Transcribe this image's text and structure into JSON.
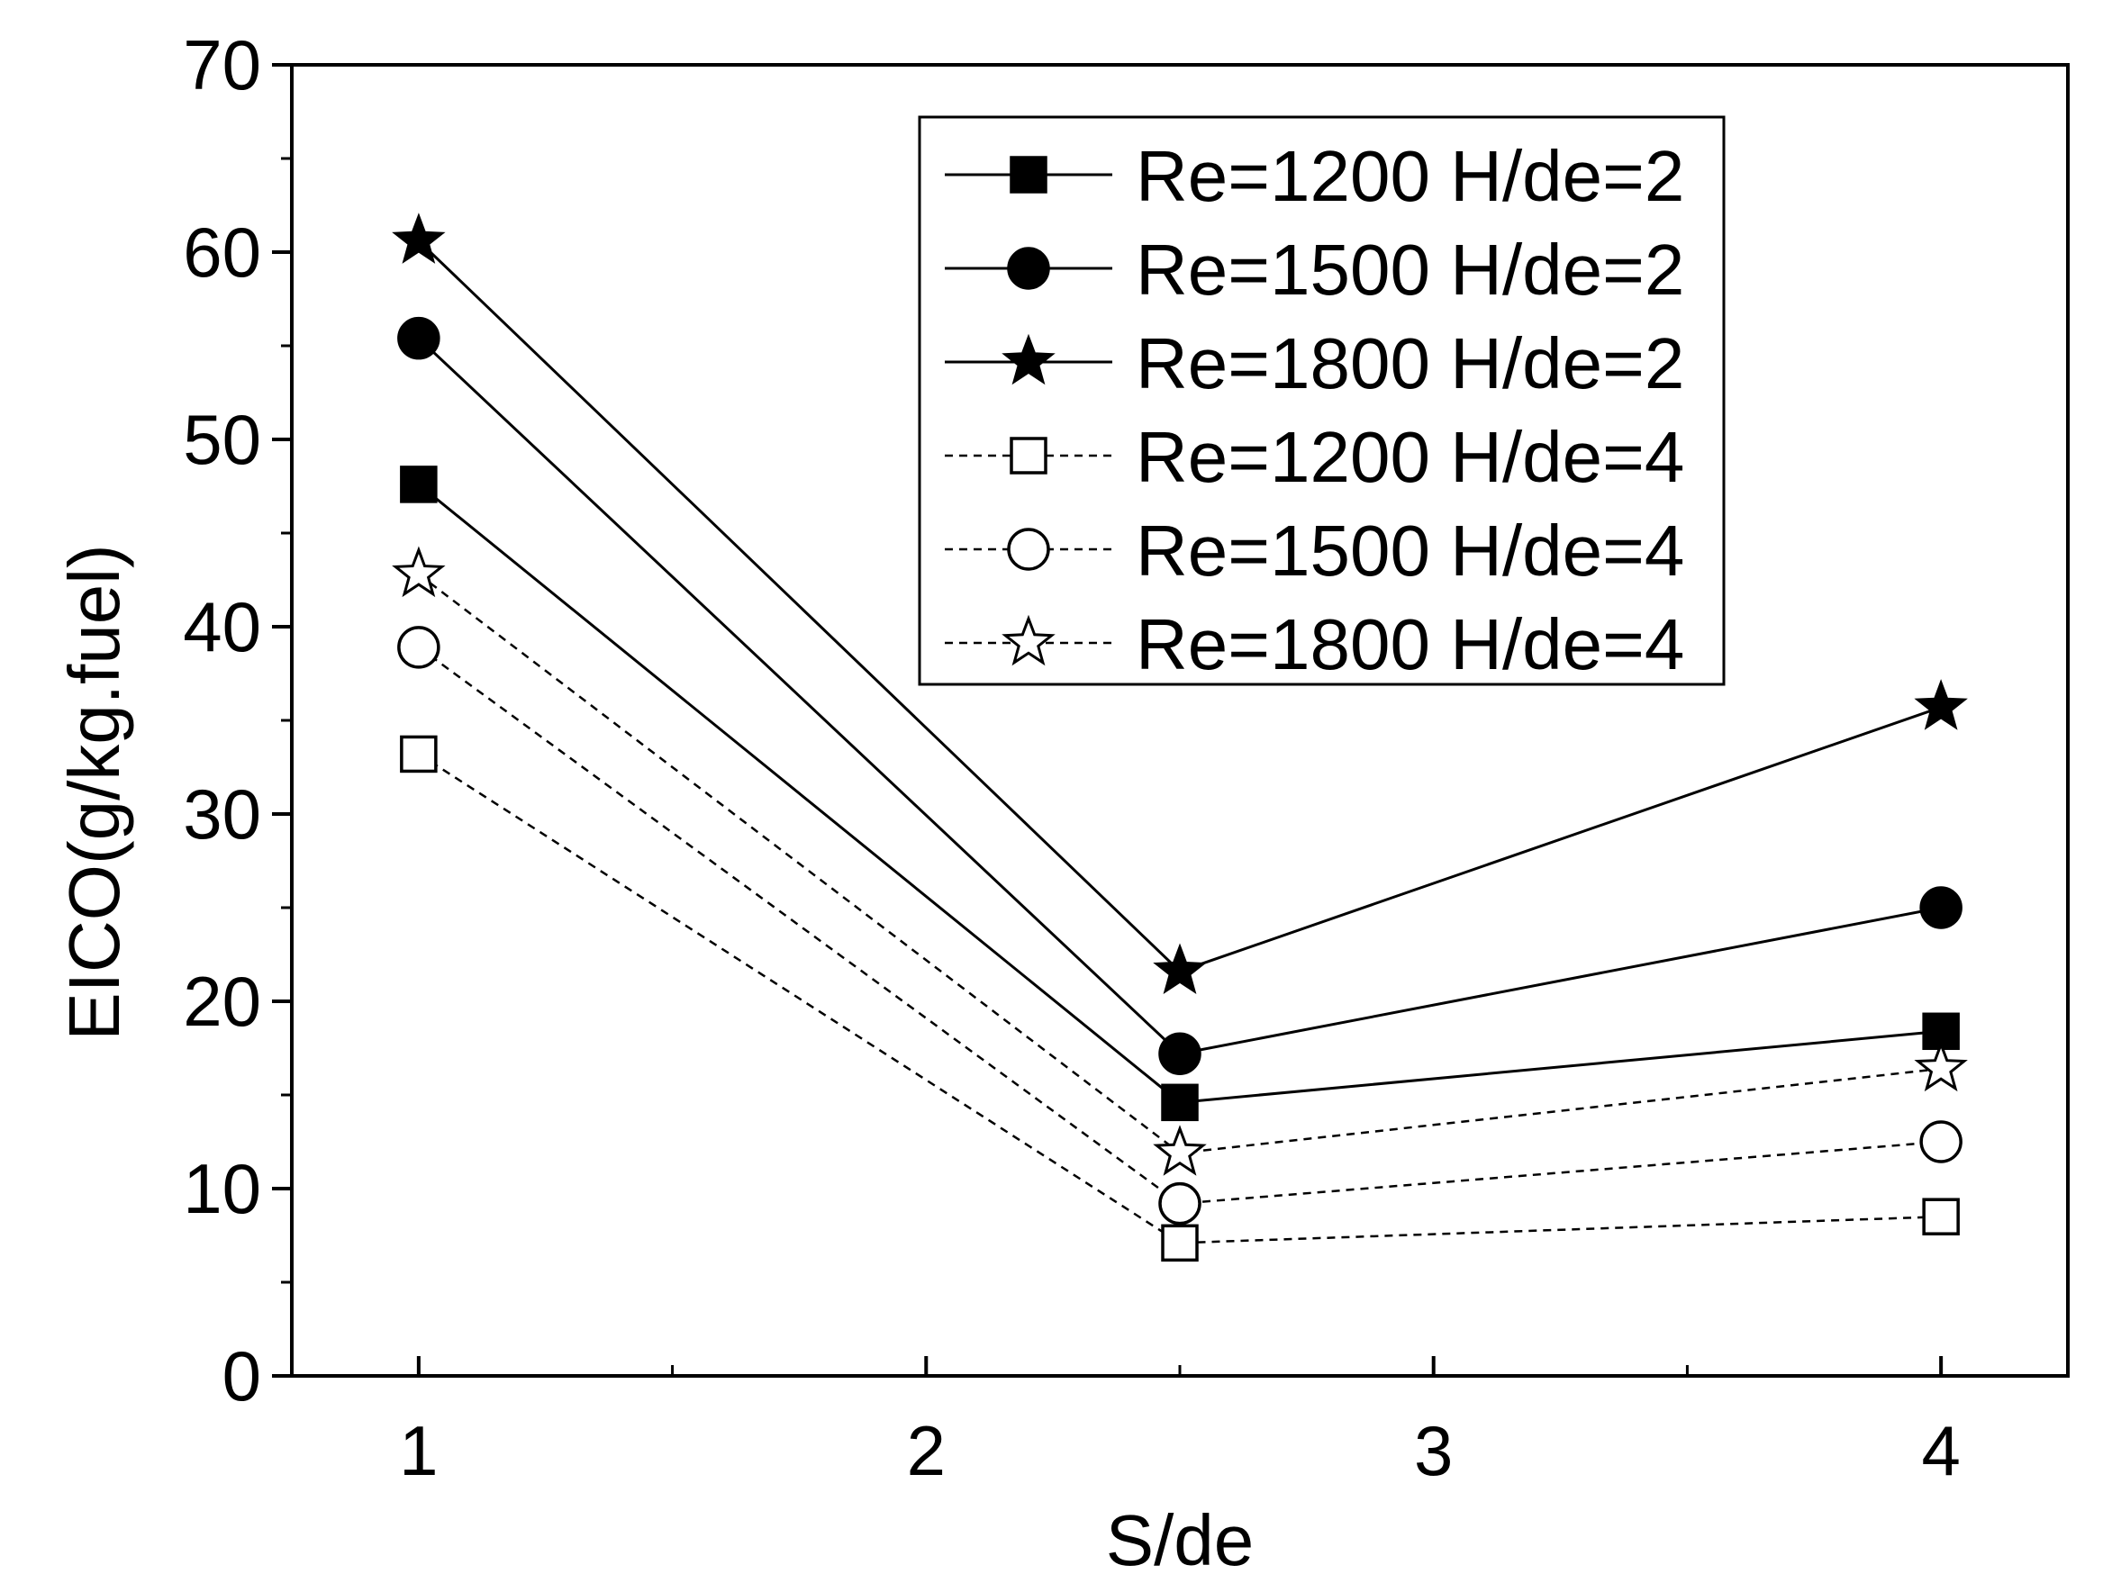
{
  "chart_data": {
    "type": "line",
    "xlabel": "S/de",
    "ylabel": "EICO(g/kg.fuel)",
    "xlim": [
      0.75,
      4.25
    ],
    "ylim": [
      0,
      70
    ],
    "x_ticks": [
      1,
      2,
      3,
      4
    ],
    "x_minor_ticks": [
      1.5,
      2.5,
      3.5
    ],
    "y_ticks": [
      0,
      10,
      20,
      30,
      40,
      50,
      60,
      70
    ],
    "y_minor_ticks": [
      5,
      15,
      25,
      35,
      45,
      55,
      65
    ],
    "x_tick_labels": [
      "1",
      "2",
      "3",
      "4"
    ],
    "y_tick_labels": [
      "0",
      "10",
      "20",
      "30",
      "40",
      "50",
      "60",
      "70"
    ],
    "x": [
      1,
      2.5,
      4
    ],
    "legend_position": "top-right",
    "series": [
      {
        "name": "Re=1200 H/de=2",
        "marker": "square",
        "filled": true,
        "line": "solid",
        "values": [
          47.6,
          14.6,
          18.4
        ]
      },
      {
        "name": "Re=1500 H/de=2",
        "marker": "circle",
        "filled": true,
        "line": "solid",
        "values": [
          55.4,
          17.2,
          25.0
        ]
      },
      {
        "name": "Re=1800 H/de=2",
        "marker": "star",
        "filled": true,
        "line": "solid",
        "values": [
          60.6,
          21.6,
          35.7
        ]
      },
      {
        "name": "Re=1200 H/de=4",
        "marker": "square",
        "filled": false,
        "line": "dashed",
        "values": [
          33.2,
          7.1,
          8.5
        ]
      },
      {
        "name": "Re=1500 H/de=4",
        "marker": "circle",
        "filled": false,
        "line": "dashed",
        "values": [
          38.9,
          9.2,
          12.5
        ]
      },
      {
        "name": "Re=1800 H/de=4",
        "marker": "star",
        "filled": false,
        "line": "dashed",
        "values": [
          42.8,
          11.9,
          16.4
        ]
      }
    ],
    "colors": {
      "axis": "#000000",
      "series": "#000000",
      "background": "#ffffff"
    }
  }
}
